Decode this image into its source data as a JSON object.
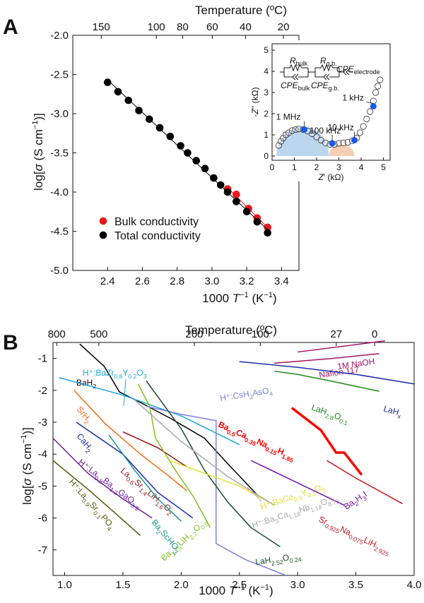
{
  "panel_a": {
    "letter": "A",
    "top_axis_label": "Temperature (ºC)",
    "bottom_axis_label": "1000 T⁻¹ (K⁻¹)",
    "y_axis_label": "log[σ (S cm⁻¹)]",
    "legend": [
      "Bulk conductivity",
      "Total conductivity"
    ],
    "inset": {
      "xlabel": "Z' (kΩ)",
      "ylabel": "-Z'' (kΩ)",
      "circuit": {
        "r_bulk": "R",
        "r_bulk_sub": "bulk",
        "r_gb": "R",
        "r_gb_sub": "g.b.",
        "cpe_e": "CPE",
        "cpe_e_sub": "electrode",
        "cpe_bulk": "CPE",
        "cpe_bulk_sub": "bulk",
        "cpe_gb": "CPE",
        "cpe_gb_sub": "g.b."
      },
      "freq_labels": [
        "1 MHz",
        "100 kHz",
        "10 kHz",
        "1 kHz"
      ]
    }
  },
  "panel_b": {
    "letter": "B",
    "top_axis_label": "Temperature (ºC)",
    "bottom_axis_label": "1000 T⁻¹ (K⁻¹)",
    "y_axis_label": "log[σ (S cm⁻¹)]"
  },
  "chart_data": [
    {
      "type": "scatter",
      "title": "",
      "xlabel": "1000 T⁻¹ (K⁻¹)",
      "ylabel": "log[σ (S cm⁻¹)]",
      "xlim": [
        2.2,
        3.5
      ],
      "ylim": [
        -5.0,
        -2.0
      ],
      "xticks": [
        2.4,
        2.6,
        2.8,
        3.0,
        3.2,
        3.4
      ],
      "yticks": [
        -5.0,
        -4.5,
        -4.0,
        -3.5,
        -3.0,
        -2.5,
        -2.0
      ],
      "top_axis": {
        "label": "Temperature (ºC)",
        "ticks": [
          150,
          100,
          80,
          60,
          40,
          20
        ]
      },
      "legend_position": "bottom-left",
      "series": [
        {
          "name": "Bulk conductivity",
          "color": "#e8191c",
          "x": [
            3.09,
            3.14,
            3.21,
            3.26,
            3.32
          ],
          "y": [
            -3.96,
            -4.03,
            -4.21,
            -4.33,
            -4.45
          ]
        },
        {
          "name": "Total conductivity",
          "color": "#000000",
          "x": [
            2.4,
            2.46,
            2.52,
            2.58,
            2.64,
            2.7,
            2.76,
            2.82,
            2.86,
            2.91,
            2.96,
            3.01,
            3.05,
            3.09,
            3.14,
            3.2,
            3.26,
            3.32
          ],
          "y": [
            -2.6,
            -2.72,
            -2.83,
            -2.96,
            -3.07,
            -3.18,
            -3.29,
            -3.41,
            -3.5,
            -3.6,
            -3.7,
            -3.82,
            -3.91,
            -4.0,
            -4.12,
            -4.25,
            -4.38,
            -4.52
          ]
        }
      ],
      "inset": {
        "type": "scatter",
        "xlabel": "Z' (kΩ)",
        "ylabel": "-Z'' (kΩ)",
        "xlim": [
          0,
          5.3
        ],
        "ylim": [
          -0.2,
          5.3
        ],
        "xticks": [
          0,
          1,
          2,
          3,
          4,
          5
        ],
        "yticks": [
          0,
          1,
          2,
          3,
          4,
          5
        ],
        "open_points": {
          "x": [
            0.3,
            0.4,
            0.5,
            0.62,
            0.75,
            0.9,
            1.05,
            1.2,
            1.4,
            1.6,
            1.8,
            2.0,
            2.2,
            2.4,
            2.6,
            2.8,
            3.0,
            3.2,
            3.4,
            3.6,
            3.8,
            3.95,
            4.1,
            4.25,
            4.4,
            4.55,
            4.65,
            4.75,
            4.85
          ],
          "y": [
            0.5,
            0.7,
            0.85,
            1.0,
            1.1,
            1.2,
            1.25,
            1.28,
            1.25,
            1.18,
            1.05,
            0.9,
            0.75,
            0.62,
            0.55,
            0.55,
            0.6,
            0.62,
            0.65,
            0.72,
            0.85,
            1.1,
            1.4,
            1.75,
            2.1,
            2.6,
            3.0,
            3.3,
            3.6
          ]
        },
        "marked_points": [
          {
            "label": "1 MHz",
            "x": 1.45,
            "y": 1.25
          },
          {
            "label": "100 kHz",
            "x": 2.7,
            "y": 0.6
          },
          {
            "label": "10 kHz",
            "x": 3.7,
            "y": 0.75
          },
          {
            "label": "1 kHz",
            "x": 4.55,
            "y": 2.35
          }
        ],
        "bulk_fill_color": "#bcd6ee",
        "gb_fill_color": "#f7cdb5",
        "marker_color": "#1a5ae8"
      }
    },
    {
      "type": "line",
      "title": "",
      "xlabel": "1000 T⁻¹ (K⁻¹)",
      "ylabel": "log[σ (S cm⁻¹)]",
      "xlim": [
        0.9,
        4.0
      ],
      "ylim": [
        -7.8,
        -0.5
      ],
      "xticks": [
        1.0,
        1.5,
        2.0,
        2.5,
        3.0,
        3.5,
        4.0
      ],
      "yticks": [
        -7,
        -6,
        -5,
        -4,
        -3,
        -2,
        -1
      ],
      "top_axis": {
        "label": "Temperature (ºC)",
        "ticks": [
          800,
          500,
          200,
          100,
          27,
          0
        ]
      },
      "series": [
        {
          "name": "1M NaOH",
          "color": "#a0155f",
          "x": [
            3.0,
            3.75
          ],
          "y": [
            -0.8,
            -0.45
          ]
        },
        {
          "name": "Nafion 117",
          "color": "#a0155f",
          "x": [
            2.8,
            3.3,
            3.7
          ],
          "y": [
            -1.15,
            -1.0,
            -0.85
          ]
        },
        {
          "name": "LaH",
          "sub": "x",
          "color": "#1c2cab",
          "x": [
            2.5,
            3.0,
            3.5,
            4.0
          ],
          "y": [
            -1.1,
            -1.28,
            -1.5,
            -1.8
          ]
        },
        {
          "name": "LaH",
          "sub": "2.8",
          "name2": "O",
          "sub2": "0.1",
          "color": "#1f8a17",
          "x": [
            2.8,
            3.0,
            3.3,
            3.7
          ],
          "y": [
            -1.4,
            -1.5,
            -1.72,
            -2.03
          ]
        },
        {
          "name": "BaH",
          "sub": "2",
          "color": "#000000",
          "x": [
            1.13,
            1.34,
            1.47,
            1.66,
            1.92,
            2.2,
            2.4,
            2.66
          ],
          "y": [
            -0.55,
            -1.25,
            -2.05,
            -2.4,
            -2.9,
            -3.5,
            -4.3,
            -5.3
          ]
        },
        {
          "name": "H⁺:BaZr",
          "sub": "0.8",
          "name2": "Y",
          "sub2": "0.2",
          "name3": "O",
          "sub3": "3",
          "color": "#1fa3dc",
          "x": [
            0.95,
            1.5,
            2.0,
            2.5
          ],
          "y": [
            -1.6,
            -2.15,
            -2.8,
            -3.7
          ]
        },
        {
          "name": "SrH",
          "sub": "2",
          "color": "#ef6d1b",
          "x": [
            1.08,
            1.35,
            1.65,
            1.9,
            2.05
          ],
          "y": [
            -2.0,
            -3.05,
            -4.0,
            -4.7,
            -5.15
          ]
        },
        {
          "name": "CaH",
          "sub": "2",
          "color": "#1c2cab",
          "x": [
            1.1,
            1.5,
            1.8,
            2.1
          ],
          "y": [
            -3.0,
            -4.0,
            -5.2,
            -6.0
          ]
        },
        {
          "name": "H⁺:La",
          "sub": "0.8",
          "name2": "Ba",
          "sub2": "1.2",
          "name3": "GaO",
          "sub3": "3.9",
          "color": "#6b1d9c",
          "x": [
            0.9,
            1.2,
            1.5,
            1.75
          ],
          "y": [
            -3.5,
            -4.6,
            -5.4,
            -6.0
          ]
        },
        {
          "name": "H⁺:La",
          "sub": "0.9",
          "name2": "Sr",
          "sub2": "0.1",
          "name3": "PO",
          "sub3": "4",
          "color": "#575a0d",
          "x": [
            0.9,
            1.2,
            1.45,
            1.65
          ],
          "y": [
            -4.2,
            -5.1,
            -5.9,
            -6.55
          ]
        },
        {
          "name": "La",
          "sub": "0.6",
          "name2": "Sr",
          "sub2": "1.4",
          "name3": "LiH",
          "sub3": "1.6",
          "name4": "O",
          "sub4": "2",
          "color": "#8e1412",
          "x": [
            1.5,
            1.8,
            2.05
          ],
          "y": [
            -3.3,
            -3.8,
            -4.4
          ]
        },
        {
          "name": "Ba",
          "sub": "2",
          "name2": "ScHO",
          "sub2": "3",
          "color": "#14978f",
          "x": [
            1.38,
            1.6,
            1.8,
            2.0
          ],
          "y": [
            -3.4,
            -4.5,
            -5.4,
            -6.1
          ]
        },
        {
          "name": "Ba",
          "sub": "1.75",
          "name2": "LiH",
          "sub2": "2.7",
          "name3": "O",
          "sub3": "0.9",
          "color": "#7ec11e",
          "x": [
            1.63,
            1.73,
            1.78,
            1.95,
            2.1,
            2.25
          ],
          "y": [
            -1.8,
            -2.5,
            -3.5,
            -4.5,
            -5.3,
            -6.3
          ]
        },
        {
          "name": "H⁺:CsH",
          "sub": "2",
          "name2": "AsO",
          "sub2": "4",
          "color": "#7f7fe0",
          "x": [
            1.7,
            2.0,
            2.3,
            2.3,
            2.55,
            2.9
          ],
          "y": [
            -2.5,
            -2.75,
            -2.95,
            -6.8,
            -7.3,
            -7.8
          ]
        },
        {
          "name": "LaH",
          "sub": "2.52",
          "name2": "O",
          "sub2": "0.24",
          "color": "#1d4d2a",
          "x": [
            1.7,
            2.0,
            2.2,
            2.4,
            2.6,
            2.85
          ],
          "y": [
            -1.7,
            -3.2,
            -4.5,
            -5.5,
            -6.3,
            -6.9
          ]
        },
        {
          "name": "Sr",
          "sub": "0.925",
          "name2": "Na",
          "sub2": "0.075",
          "name3": "LiH",
          "sub3": "2.925",
          "color": "#c4161c",
          "x": [
            3.25,
            3.5,
            3.9
          ],
          "y": [
            -4.2,
            -4.75,
            -5.55
          ]
        },
        {
          "name": "Ba",
          "sub": "0.5",
          "name2": "Ca",
          "sub2": "0.35",
          "name3": "Na",
          "sub3": "0.15",
          "name4": "H",
          "sub4": "1.85",
          "color": "#ff0000",
          "x": [
            2.95,
            3.2,
            3.33,
            3.4,
            3.55
          ],
          "y": [
            -2.55,
            -3.25,
            -3.95,
            -3.95,
            -4.65
          ]
        },
        {
          "name": "Ba",
          "sub": "2",
          "name2": "H",
          "sub2": "3",
          "name3": "I",
          "sub3": "",
          "color": "#7a10a8",
          "x": [
            2.6,
            3.0,
            3.4
          ],
          "y": [
            -4.2,
            -4.9,
            -5.6
          ]
        },
        {
          "name": "H⁺:BaCe",
          "sub": "0.9",
          "name2": "Y",
          "sub2": "0.1",
          "name3": "O",
          "sub3": "3",
          "color": "#e5e132",
          "x": [
            1.9,
            2.2,
            2.5,
            2.75
          ],
          "y": [
            -4.2,
            -4.6,
            -5.0,
            -5.5
          ]
        },
        {
          "name": "H⁺:Ba",
          "sub": "3",
          "name2": "Ca",
          "sub2": "1.18",
          "name3": "Nb",
          "sub3": "1.18",
          "name4": "O",
          "sub4": "8.73",
          "color": "#a9a9a9",
          "x": [
            1.6,
            2.0,
            2.4,
            2.8
          ],
          "y": [
            -2.3,
            -3.6,
            -4.7,
            -5.6
          ]
        }
      ]
    }
  ]
}
